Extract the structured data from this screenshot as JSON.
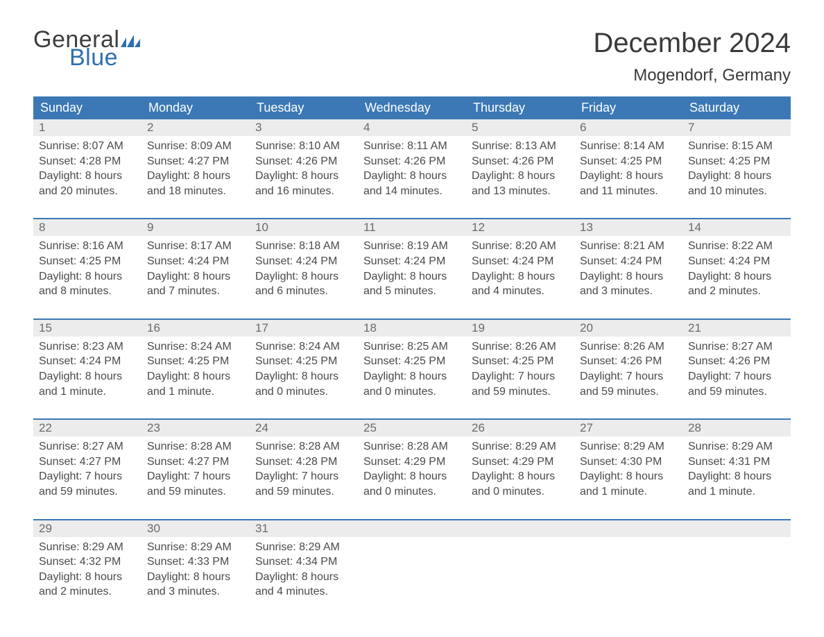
{
  "logo": {
    "word1": "General",
    "word2": "Blue",
    "flag_color": "#2f6fb1"
  },
  "title": "December 2024",
  "location": "Mogendorf, Germany",
  "colors": {
    "header_bg": "#3b78b5",
    "header_text": "#ffffff",
    "daynum_bg": "#ececec",
    "daynum_text": "#6a6a6a",
    "body_text": "#4a4a4a",
    "rule": "#3b78b5"
  },
  "dow": [
    "Sunday",
    "Monday",
    "Tuesday",
    "Wednesday",
    "Thursday",
    "Friday",
    "Saturday"
  ],
  "weeks": [
    [
      {
        "n": "1",
        "sr": "8:07 AM",
        "ss": "4:28 PM",
        "dl": "8 hours and 20 minutes."
      },
      {
        "n": "2",
        "sr": "8:09 AM",
        "ss": "4:27 PM",
        "dl": "8 hours and 18 minutes."
      },
      {
        "n": "3",
        "sr": "8:10 AM",
        "ss": "4:26 PM",
        "dl": "8 hours and 16 minutes."
      },
      {
        "n": "4",
        "sr": "8:11 AM",
        "ss": "4:26 PM",
        "dl": "8 hours and 14 minutes."
      },
      {
        "n": "5",
        "sr": "8:13 AM",
        "ss": "4:26 PM",
        "dl": "8 hours and 13 minutes."
      },
      {
        "n": "6",
        "sr": "8:14 AM",
        "ss": "4:25 PM",
        "dl": "8 hours and 11 minutes."
      },
      {
        "n": "7",
        "sr": "8:15 AM",
        "ss": "4:25 PM",
        "dl": "8 hours and 10 minutes."
      }
    ],
    [
      {
        "n": "8",
        "sr": "8:16 AM",
        "ss": "4:25 PM",
        "dl": "8 hours and 8 minutes."
      },
      {
        "n": "9",
        "sr": "8:17 AM",
        "ss": "4:24 PM",
        "dl": "8 hours and 7 minutes."
      },
      {
        "n": "10",
        "sr": "8:18 AM",
        "ss": "4:24 PM",
        "dl": "8 hours and 6 minutes."
      },
      {
        "n": "11",
        "sr": "8:19 AM",
        "ss": "4:24 PM",
        "dl": "8 hours and 5 minutes."
      },
      {
        "n": "12",
        "sr": "8:20 AM",
        "ss": "4:24 PM",
        "dl": "8 hours and 4 minutes."
      },
      {
        "n": "13",
        "sr": "8:21 AM",
        "ss": "4:24 PM",
        "dl": "8 hours and 3 minutes."
      },
      {
        "n": "14",
        "sr": "8:22 AM",
        "ss": "4:24 PM",
        "dl": "8 hours and 2 minutes."
      }
    ],
    [
      {
        "n": "15",
        "sr": "8:23 AM",
        "ss": "4:24 PM",
        "dl": "8 hours and 1 minute."
      },
      {
        "n": "16",
        "sr": "8:24 AM",
        "ss": "4:25 PM",
        "dl": "8 hours and 1 minute."
      },
      {
        "n": "17",
        "sr": "8:24 AM",
        "ss": "4:25 PM",
        "dl": "8 hours and 0 minutes."
      },
      {
        "n": "18",
        "sr": "8:25 AM",
        "ss": "4:25 PM",
        "dl": "8 hours and 0 minutes."
      },
      {
        "n": "19",
        "sr": "8:26 AM",
        "ss": "4:25 PM",
        "dl": "7 hours and 59 minutes."
      },
      {
        "n": "20",
        "sr": "8:26 AM",
        "ss": "4:26 PM",
        "dl": "7 hours and 59 minutes."
      },
      {
        "n": "21",
        "sr": "8:27 AM",
        "ss": "4:26 PM",
        "dl": "7 hours and 59 minutes."
      }
    ],
    [
      {
        "n": "22",
        "sr": "8:27 AM",
        "ss": "4:27 PM",
        "dl": "7 hours and 59 minutes."
      },
      {
        "n": "23",
        "sr": "8:28 AM",
        "ss": "4:27 PM",
        "dl": "7 hours and 59 minutes."
      },
      {
        "n": "24",
        "sr": "8:28 AM",
        "ss": "4:28 PM",
        "dl": "7 hours and 59 minutes."
      },
      {
        "n": "25",
        "sr": "8:28 AM",
        "ss": "4:29 PM",
        "dl": "8 hours and 0 minutes."
      },
      {
        "n": "26",
        "sr": "8:29 AM",
        "ss": "4:29 PM",
        "dl": "8 hours and 0 minutes."
      },
      {
        "n": "27",
        "sr": "8:29 AM",
        "ss": "4:30 PM",
        "dl": "8 hours and 1 minute."
      },
      {
        "n": "28",
        "sr": "8:29 AM",
        "ss": "4:31 PM",
        "dl": "8 hours and 1 minute."
      }
    ],
    [
      {
        "n": "29",
        "sr": "8:29 AM",
        "ss": "4:32 PM",
        "dl": "8 hours and 2 minutes."
      },
      {
        "n": "30",
        "sr": "8:29 AM",
        "ss": "4:33 PM",
        "dl": "8 hours and 3 minutes."
      },
      {
        "n": "31",
        "sr": "8:29 AM",
        "ss": "4:34 PM",
        "dl": "8 hours and 4 minutes."
      },
      null,
      null,
      null,
      null
    ]
  ],
  "labels": {
    "sunrise": "Sunrise: ",
    "sunset": "Sunset: ",
    "daylight": "Daylight: "
  }
}
